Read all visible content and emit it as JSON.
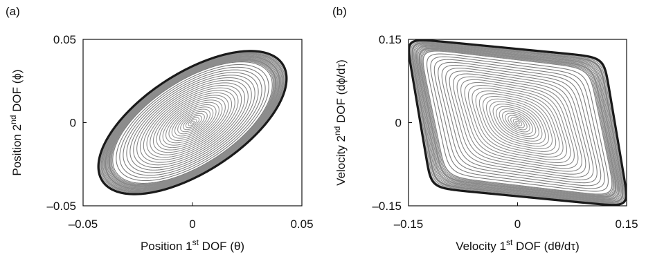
{
  "chart_data": [
    {
      "type": "line",
      "panel_label": "(a)",
      "xlabel": {
        "pre": "Position 1",
        "sup": "st",
        "post": " DOF (θ)"
      },
      "ylabel": {
        "pre": "Position 2",
        "sup": "nd",
        "post": " DOF (ϕ)"
      },
      "xlim": [
        -0.05,
        0.05
      ],
      "ylim": [
        -0.05,
        0.05
      ],
      "x_ticks": [
        -0.05,
        0,
        0.05
      ],
      "x_tick_labels": [
        "–0.05",
        "0",
        "0.05"
      ],
      "y_ticks": [
        -0.05,
        0,
        0.05
      ],
      "y_tick_labels": [
        "–0.05",
        "0",
        "0.05"
      ],
      "grid": false,
      "description_shape": "expanding tilted elliptical spiral from origin to a thick outer limit cycle",
      "limit_cycle": {
        "x_amplitude": 0.043,
        "y_amplitude": 0.043,
        "phase_lag_deg": 52,
        "x_max": 0.043,
        "x_min": -0.043,
        "y_max": 0.042,
        "y_min": -0.042
      },
      "spiral_turns": 30,
      "line_color": "#8a8a8a",
      "outer_color": "#1a1a1a"
    },
    {
      "type": "line",
      "panel_label": "(b)",
      "xlabel": {
        "pre": "Velocity 1",
        "sup": "st",
        "post": " DOF (dθ/dτ)"
      },
      "ylabel": {
        "pre": "Velocity 2",
        "sup": "nd",
        "post": " DOF (dϕ/dτ)"
      },
      "xlim": [
        -0.15,
        0.15
      ],
      "ylim": [
        -0.15,
        0.15
      ],
      "x_ticks": [
        -0.15,
        0,
        0.15
      ],
      "x_tick_labels": [
        "–0.15",
        "0",
        "0.15"
      ],
      "y_ticks": [
        -0.15,
        0,
        0.15
      ],
      "y_tick_labels": [
        "–0.15",
        "0",
        "0.15"
      ],
      "grid": false,
      "description_shape": "expanding lens-shaped spiral from origin to a thick outer limit cycle",
      "limit_cycle": {
        "x_amplitude": 0.136,
        "y_amplitude": 0.135,
        "phase_lag_deg": 30,
        "x_max": 0.135,
        "x_min": -0.136,
        "y_max": 0.135,
        "y_min": -0.135
      },
      "spiral_turns": 32,
      "line_color": "#8a8a8a",
      "outer_color": "#1a1a1a"
    }
  ]
}
